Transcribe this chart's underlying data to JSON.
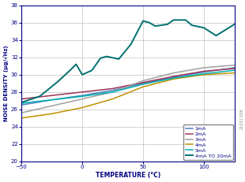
{
  "xlabel": "TEMPERATURE (°C)",
  "ylabel": "NOISE DENSITY (μg/√Hz)",
  "xlim": [
    -50,
    125
  ],
  "ylim": [
    20,
    38
  ],
  "xticks": [
    -50,
    0,
    50,
    100
  ],
  "yticks": [
    20,
    22,
    24,
    26,
    28,
    30,
    32,
    34,
    36,
    38
  ],
  "series": {
    "1mA": {
      "color": "#4f81bd",
      "x": [
        -50,
        -25,
        0,
        25,
        50,
        75,
        100,
        125
      ],
      "y": [
        26.5,
        27.1,
        27.6,
        28.2,
        29.0,
        29.7,
        30.3,
        30.8
      ]
    },
    "2mA": {
      "color": "#9c3557",
      "x": [
        -50,
        -25,
        0,
        25,
        50,
        75,
        100,
        125
      ],
      "y": [
        27.2,
        27.6,
        28.0,
        28.4,
        29.1,
        29.8,
        30.4,
        30.7
      ]
    },
    "3mA": {
      "color": "#a0a0a0",
      "x": [
        -50,
        -25,
        0,
        25,
        50,
        75,
        100,
        125
      ],
      "y": [
        25.6,
        26.4,
        27.2,
        28.0,
        29.3,
        30.2,
        30.8,
        31.1
      ]
    },
    "4mA": {
      "color": "#bf9000",
      "x": [
        -50,
        -25,
        0,
        25,
        50,
        75,
        100,
        125
      ],
      "y": [
        25.0,
        25.5,
        26.2,
        27.2,
        28.6,
        29.5,
        30.0,
        30.2
      ]
    },
    "5mA": {
      "color": "#00b0b0",
      "x": [
        -50,
        -25,
        0,
        25,
        50,
        75,
        100,
        125
      ],
      "y": [
        26.7,
        27.1,
        27.5,
        28.0,
        28.9,
        29.6,
        30.1,
        30.5
      ]
    },
    "4mA TO 20mA": {
      "color": "#007070",
      "x": [
        -50,
        -35,
        -20,
        -10,
        -5,
        0,
        8,
        15,
        20,
        30,
        40,
        50,
        55,
        60,
        70,
        75,
        85,
        90,
        100,
        110,
        125
      ],
      "y": [
        26.8,
        27.5,
        29.2,
        30.5,
        31.2,
        30.0,
        30.5,
        31.9,
        32.1,
        31.8,
        33.5,
        36.2,
        36.0,
        35.6,
        35.8,
        36.3,
        36.3,
        35.7,
        35.4,
        34.5,
        35.8
      ]
    }
  },
  "fignum": "21031-006",
  "background_color": "#ffffff"
}
